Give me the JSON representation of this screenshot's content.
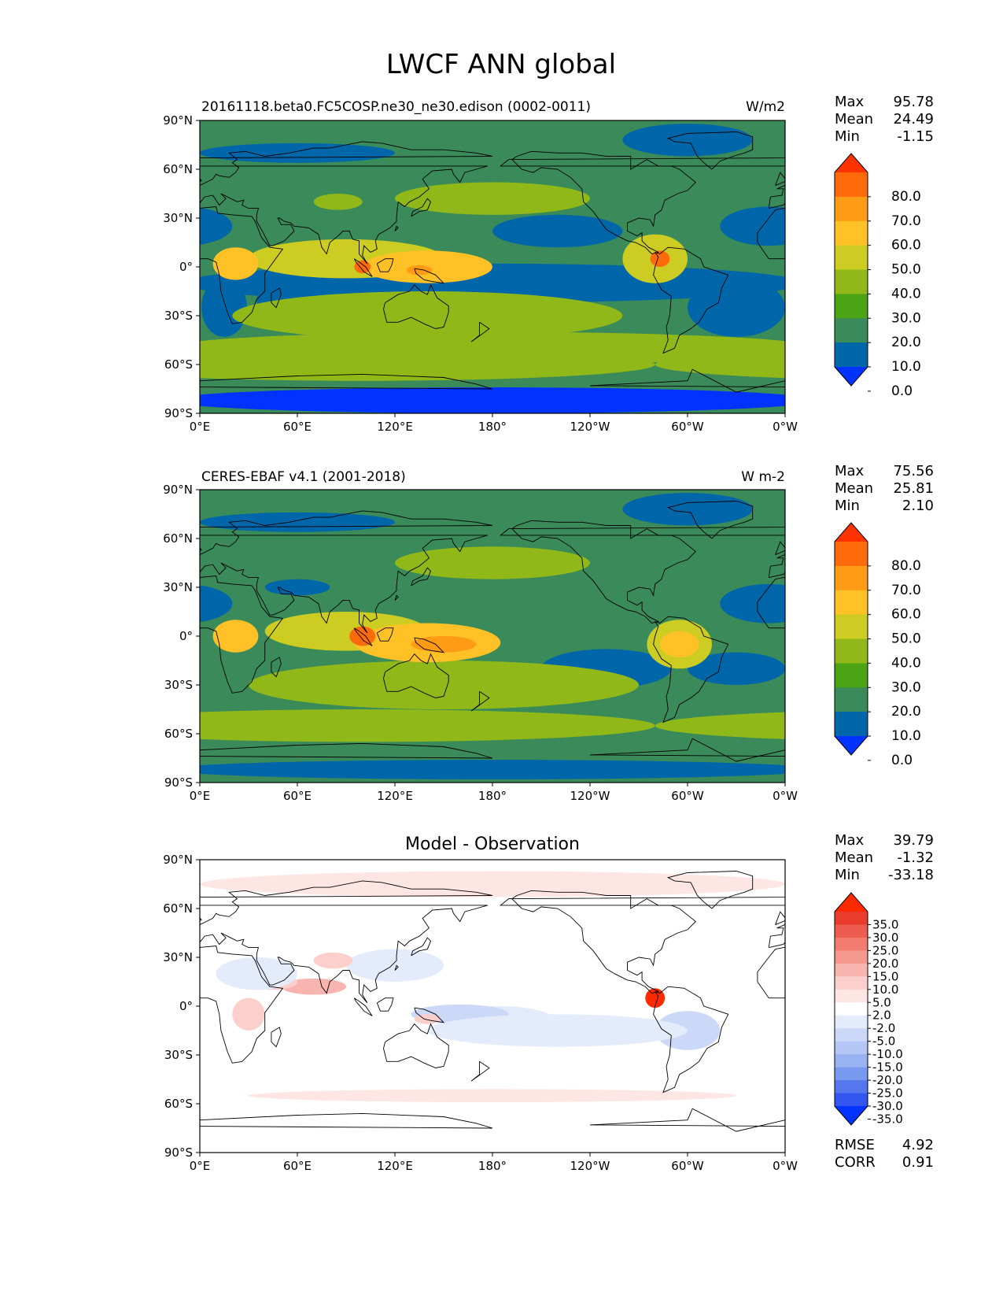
{
  "title": "LWCF ANN global",
  "map_axes": {
    "x_ticks": [
      "0°E",
      "60°E",
      "120°E",
      "180°",
      "120°W",
      "60°W",
      "0°W"
    ],
    "y_ticks": [
      "90°N",
      "60°N",
      "30°N",
      "0°",
      "30°S",
      "60°S",
      "90°S"
    ]
  },
  "chart_data": [
    {
      "type": "heatmap",
      "title": "20161118.beta0.FC5COSP.ne30_ne30.edison (0002-0011)",
      "units": "W/m2",
      "stats": {
        "Max": "95.78",
        "Mean": "24.49",
        "Min": "-1.15"
      },
      "colorbar": {
        "labels": [
          "80.0",
          "70.0",
          "60.0",
          "50.0",
          "40.0",
          "30.0",
          "20.0",
          "10.0",
          "0.0"
        ],
        "levels": [
          0,
          10,
          20,
          30,
          40,
          50,
          60,
          70,
          80
        ],
        "colors": [
          "#0033ff",
          "#0066aa",
          "#3a8a5a",
          "#4ca414",
          "#90b818",
          "#cccc22",
          "#ffc125",
          "#ff9b15",
          "#ff6a0a",
          "#ff3300"
        ],
        "extend": "both"
      },
      "xlim": [
        0,
        360
      ],
      "ylim": [
        -90,
        90
      ]
    },
    {
      "type": "heatmap",
      "title": "CERES-EBAF v4.1 (2001-2018)",
      "units": "W m-2",
      "stats": {
        "Max": "75.56",
        "Mean": "25.81",
        "Min": "2.10"
      },
      "colorbar": {
        "labels": [
          "80.0",
          "70.0",
          "60.0",
          "50.0",
          "40.0",
          "30.0",
          "20.0",
          "10.0",
          "0.0"
        ],
        "levels": [
          0,
          10,
          20,
          30,
          40,
          50,
          60,
          70,
          80
        ],
        "colors": [
          "#0033ff",
          "#0066aa",
          "#3a8a5a",
          "#4ca414",
          "#90b818",
          "#cccc22",
          "#ffc125",
          "#ff9b15",
          "#ff6a0a",
          "#ff3300"
        ],
        "extend": "both"
      },
      "xlim": [
        0,
        360
      ],
      "ylim": [
        -90,
        90
      ]
    },
    {
      "type": "heatmap",
      "title": "Model - Observation",
      "units": "",
      "stats": {
        "Max": "39.79",
        "Mean": "-1.32",
        "Min": "-33.18"
      },
      "extra_stats": {
        "RMSE": "4.92",
        "CORR": "0.91"
      },
      "colorbar": {
        "labels": [
          "35.0",
          "30.0",
          "25.0",
          "20.0",
          "15.0",
          "10.0",
          "5.0",
          "2.0",
          "-2.0",
          "-5.0",
          "-10.0",
          "-15.0",
          "-20.0",
          "-25.0",
          "-30.0",
          "-35.0"
        ],
        "levels": [
          -35,
          -30,
          -25,
          -20,
          -15,
          -10,
          -5,
          -2,
          2,
          5,
          10,
          15,
          20,
          25,
          30,
          35
        ],
        "colors": [
          "#0033ff",
          "#3355f0",
          "#5577ee",
          "#7799f0",
          "#99b2f2",
          "#b3c6f5",
          "#ccd8f8",
          "#e4ebfb",
          "#ffffff",
          "#fde6e4",
          "#fbd0cc",
          "#f8b4ae",
          "#f59890",
          "#f27b70",
          "#ee5c50",
          "#ea3c2c",
          "#ff2a00"
        ],
        "extend": "both"
      },
      "xlim": [
        0,
        360
      ],
      "ylim": [
        -90,
        90
      ]
    }
  ]
}
